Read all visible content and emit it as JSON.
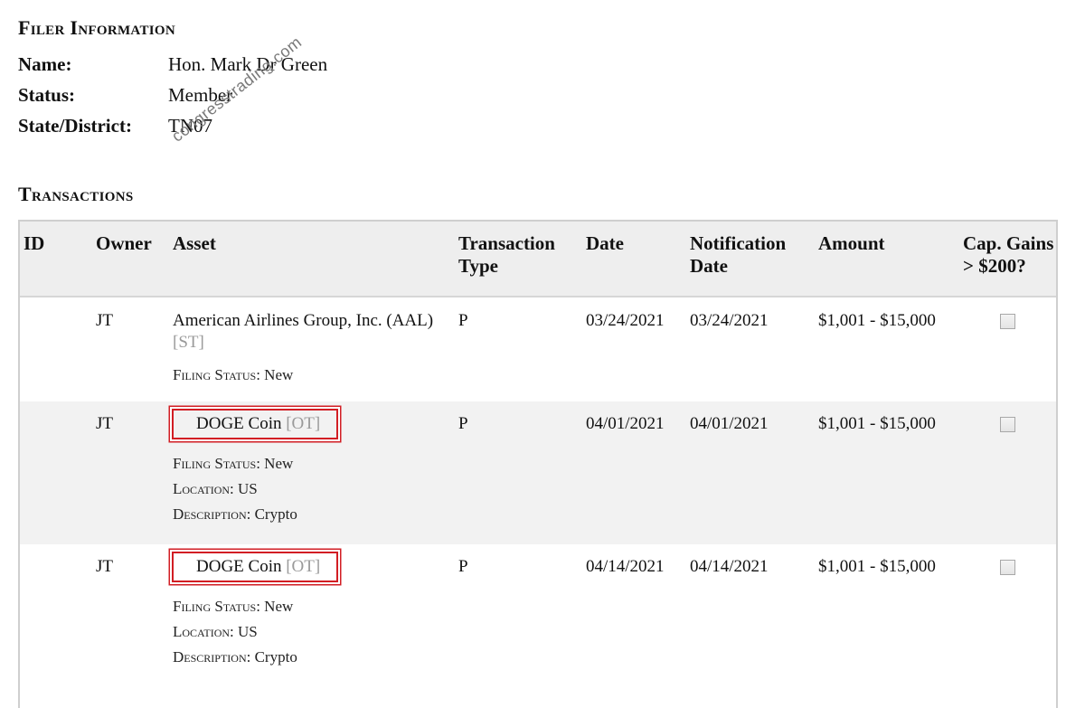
{
  "filer": {
    "title": "Filer Information",
    "name_label": "Name:",
    "name_value": "Hon. Mark Dr Green",
    "status_label": "Status:",
    "status_value": "Member",
    "state_label": "State/District:",
    "state_value": "TN07"
  },
  "watermark": "congresstrading.com",
  "transactions": {
    "title": "Transactions",
    "headers": {
      "id": "ID",
      "owner": "Owner",
      "asset": "Asset",
      "type": "Transaction Type",
      "date": "Date",
      "notification": "Notification Date",
      "amount": "Amount",
      "cap": "Cap. Gains > $200?"
    },
    "rows": [
      {
        "id": "",
        "owner": "JT",
        "asset": "American Airlines Group, Inc. (AAL)",
        "asset_tag": "[ST]",
        "filing_status_label": "Filing Status:",
        "filing_status": "New",
        "type": "P",
        "date": "03/24/2021",
        "notification_date": "03/24/2021",
        "amount": "$1,001 - $15,000",
        "cap_gains": false
      },
      {
        "id": "",
        "owner": "JT",
        "asset": "DOGE Coin",
        "asset_tag": "[OT]",
        "filing_status_label": "Filing Status:",
        "filing_status": "New",
        "location_label": "Location:",
        "location": "US",
        "description_label": "Description:",
        "description": "Crypto",
        "type": "P",
        "date": "04/01/2021",
        "notification_date": "04/01/2021",
        "amount": "$1,001 - $15,000",
        "cap_gains": false,
        "highlighted": true
      },
      {
        "id": "",
        "owner": "JT",
        "asset": "DOGE Coin",
        "asset_tag": "[OT]",
        "filing_status_label": "Filing Status:",
        "filing_status": "New",
        "location_label": "Location:",
        "location": "US",
        "description_label": "Description:",
        "description": "Crypto",
        "type": "P",
        "date": "04/14/2021",
        "notification_date": "04/14/2021",
        "amount": "$1,001 - $15,000",
        "cap_gains": false,
        "highlighted": true
      }
    ]
  },
  "colors": {
    "highlight_box": "#d21e24",
    "header_bg": "#eeeeee",
    "shaded_row_bg": "#f2f2f2",
    "tag_gray": "#9a9a9a"
  }
}
